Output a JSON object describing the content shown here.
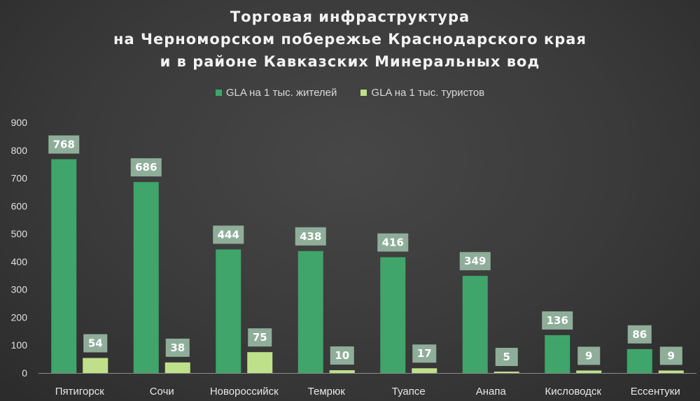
{
  "chart_data": {
    "type": "bar",
    "title_lines": [
      "Торговая инфраструктура",
      "на Черноморском побережье Краснодарского края",
      "и в районе Кавказских Минеральных вод"
    ],
    "categories": [
      "Пятигорск",
      "Сочи",
      "Новороссийск",
      "Темрюк",
      "Туапсе",
      "Анапа",
      "Кисловодск",
      "Ессентуки"
    ],
    "series": [
      {
        "name": "GLA на 1 тыс. жителей",
        "color": "#3fa56a",
        "values": [
          768,
          686,
          444,
          438,
          416,
          349,
          136,
          86
        ]
      },
      {
        "name": "GLA на 1 тыс. туристов",
        "color": "#bfe08a",
        "values": [
          54,
          38,
          75,
          10,
          17,
          5,
          9,
          9
        ]
      }
    ],
    "ylim": [
      0,
      900
    ],
    "yticks": [
      "0",
      "100",
      "200",
      "300",
      "400",
      "500",
      "600",
      "700",
      "800",
      "900"
    ],
    "grid": false,
    "legend_position": "top",
    "data_labels": true,
    "label_bg_color": "#8fae9a",
    "background_color": "#3a3a3a",
    "text_color": "#e6e6e6"
  }
}
